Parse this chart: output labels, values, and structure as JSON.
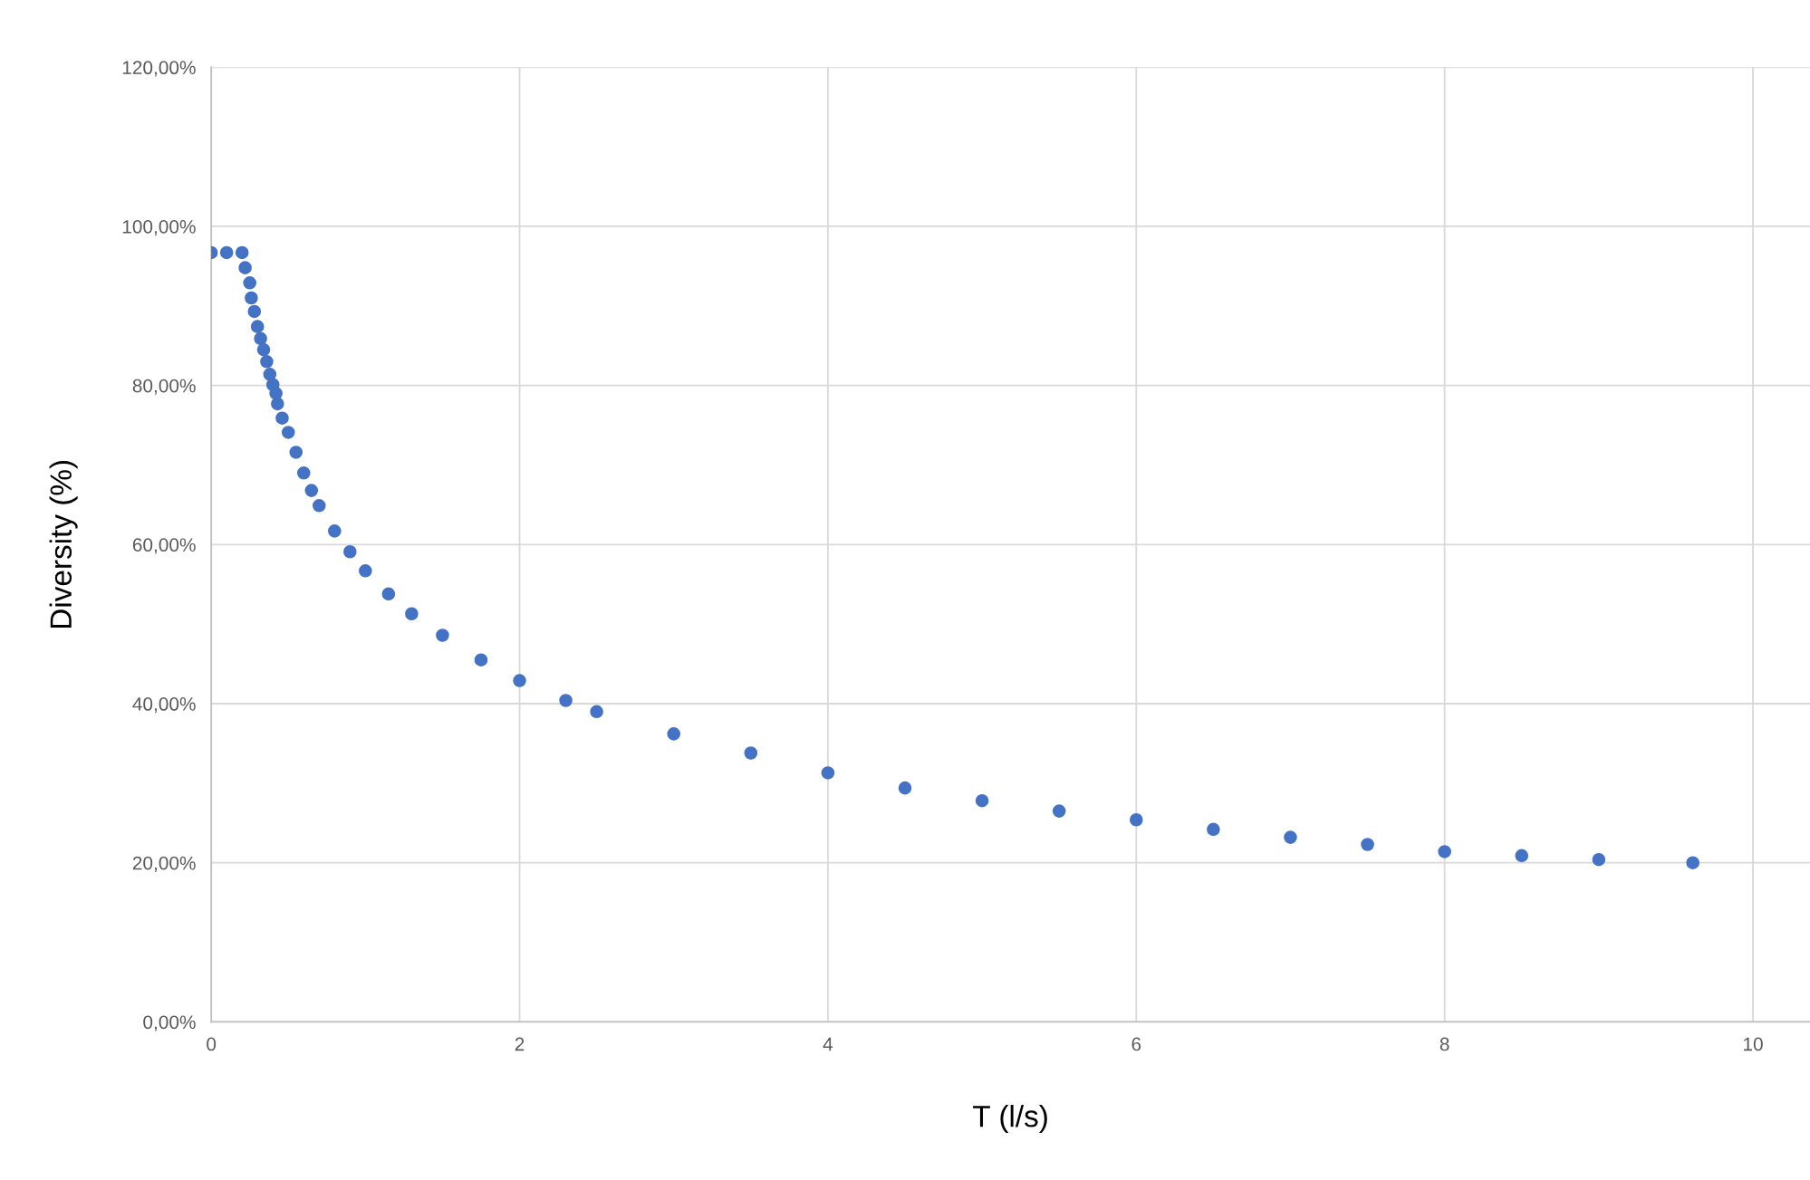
{
  "chart_data": {
    "type": "scatter",
    "xlabel": "T (l/s)",
    "ylabel": "Diversity (%)",
    "x": [
      0,
      0.1,
      0.2,
      0.22,
      0.25,
      0.26,
      0.28,
      0.3,
      0.32,
      0.34,
      0.36,
      0.38,
      0.4,
      0.42,
      0.43,
      0.46,
      0.5,
      0.55,
      0.6,
      0.65,
      0.7,
      0.8,
      0.9,
      1.0,
      1.15,
      1.3,
      1.5,
      1.75,
      2.0,
      2.3,
      2.5,
      3.0,
      3.5,
      4.0,
      4.5,
      5.0,
      5.5,
      6.0,
      6.5,
      7.0,
      7.5,
      8.0,
      8.5,
      9.0,
      9.61
    ],
    "series": [
      {
        "color": "#4472c4",
        "values": [
          96.7,
          96.7,
          96.7,
          94.8,
          92.9,
          91.0,
          89.3,
          87.4,
          85.9,
          84.5,
          83.0,
          81.4,
          80.1,
          79.0,
          77.7,
          75.9,
          74.1,
          71.6,
          69.0,
          66.8,
          64.9,
          61.7,
          59.1,
          56.7,
          53.8,
          51.3,
          48.6,
          45.5,
          42.9,
          40.4,
          39.0,
          36.2,
          33.8,
          31.3,
          29.4,
          27.8,
          26.5,
          25.4,
          24.2,
          23.2,
          22.3,
          21.4,
          20.9,
          20.4,
          20.0
        ]
      }
    ],
    "marker": "circle",
    "grid": true,
    "xlim": [
      0,
      10.37
    ],
    "xticks": [
      0,
      2,
      4,
      6,
      8,
      10
    ],
    "ylim": [
      0,
      120
    ],
    "yticks": [
      {
        "value": 0,
        "label": "0,00%"
      },
      {
        "value": 20,
        "label": "20,00%"
      },
      {
        "value": 40,
        "label": "40,00%"
      },
      {
        "value": 60,
        "label": "60,00%"
      },
      {
        "value": 80,
        "label": "80,00%"
      },
      {
        "value": 100,
        "label": "100,00%"
      },
      {
        "value": 120,
        "label": "120,00%"
      }
    ]
  }
}
